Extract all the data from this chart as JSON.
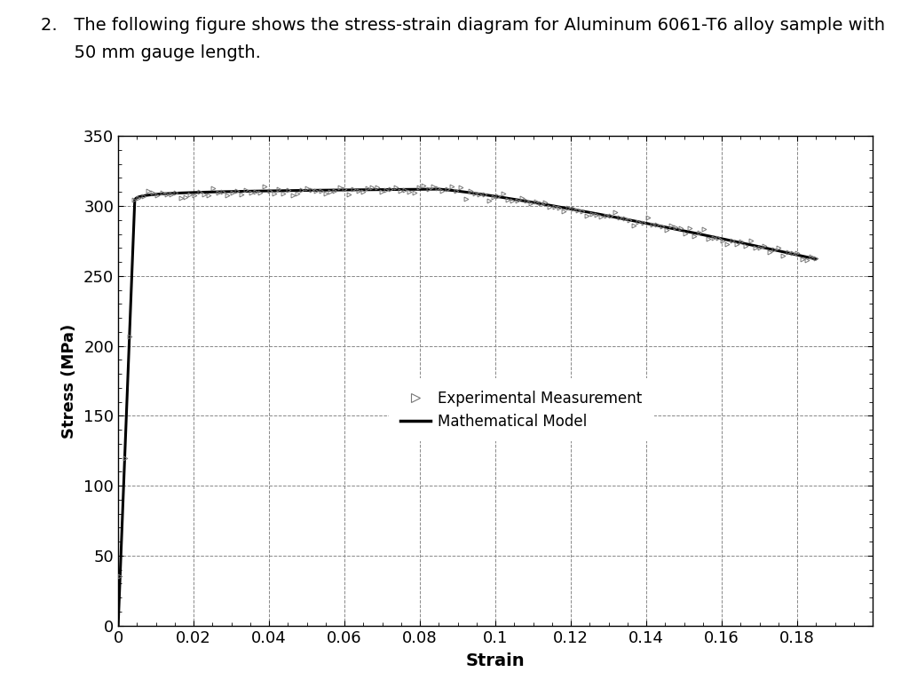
{
  "xlabel": "Strain",
  "ylabel": "Stress (MPa)",
  "xlim": [
    0,
    0.2
  ],
  "ylim": [
    0,
    350
  ],
  "xticks": [
    0,
    0.02,
    0.04,
    0.06,
    0.08,
    0.1,
    0.12,
    0.14,
    0.16,
    0.18
  ],
  "yticks": [
    0,
    50,
    100,
    150,
    200,
    250,
    300,
    350
  ],
  "xtick_labels": [
    "0",
    "0.02",
    "0.04",
    "0.06",
    "0.08",
    "0.1",
    "0.12",
    "0.14",
    "0.16",
    "0.18"
  ],
  "ytick_labels": [
    "0",
    "50",
    "100",
    "150",
    "200",
    "250",
    "300",
    "350"
  ],
  "legend_exp": "Experimental Measurement",
  "legend_model": "Mathematical Model",
  "background_color": "#ffffff",
  "plot_bg_color": "#ffffff",
  "grid_color": "#888888",
  "line_color": "#000000",
  "text_line1": "2.   The following figure shows the stress-strain diagram for Aluminum 6061-T6 alloy sample with",
  "text_line2": "      50 mm gauge length.",
  "text_fontsize": 14
}
